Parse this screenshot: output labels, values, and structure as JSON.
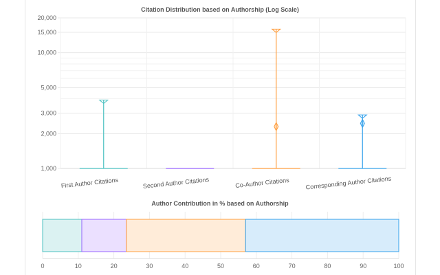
{
  "chart_data": [
    {
      "type": "violin",
      "title": "Citation Distribution based on Authorship (Log Scale)",
      "yscale": "log",
      "ylim": [
        1000,
        20000
      ],
      "yticks": [
        {
          "value": 1000,
          "label": "1,000"
        },
        {
          "value": 2000,
          "label": "2,000"
        },
        {
          "value": 3000,
          "label": "3,000"
        },
        {
          "value": 5000,
          "label": "5,000"
        },
        {
          "value": 10000,
          "label": "10,000"
        },
        {
          "value": 15000,
          "label": "15,000"
        },
        {
          "value": 20000,
          "label": "20,000"
        }
      ],
      "grid": true,
      "categories": [
        "First Author Citations",
        "Second Author Citations",
        "Co-Author Citations",
        "Corresponding Author Citations"
      ],
      "series": [
        {
          "category": "First Author Citations",
          "color": "#4bc0c0",
          "min": 1000,
          "max": 3900,
          "median": null
        },
        {
          "category": "Second Author Citations",
          "color": "#9966ff",
          "min": 1000,
          "max": 1000,
          "median": null
        },
        {
          "category": "Co-Author Citations",
          "color": "#ff9f40",
          "min": 1000,
          "max": 16000,
          "median": 2300
        },
        {
          "category": "Corresponding Author Citations",
          "color": "#36a2eb",
          "min": 1000,
          "max": 2900,
          "median": 2450
        }
      ]
    },
    {
      "type": "bar",
      "orientation": "horizontal",
      "stacked": true,
      "title": "Author Contribution in % based on Authorship",
      "xlim": [
        0,
        100
      ],
      "xticks": [
        0,
        10,
        20,
        30,
        40,
        50,
        60,
        70,
        80,
        90,
        100
      ],
      "grid": true,
      "series": [
        {
          "value": 11,
          "color": "#4bc0c0",
          "fill": "#dbf2f2"
        },
        {
          "value": 12.5,
          "color": "#9966ff",
          "fill": "#ebe0ff"
        },
        {
          "value": 33.5,
          "color": "#ff9f40",
          "fill": "#ffecd9"
        },
        {
          "value": 43,
          "color": "#36a2eb",
          "fill": "#d7ecfb"
        }
      ]
    }
  ]
}
